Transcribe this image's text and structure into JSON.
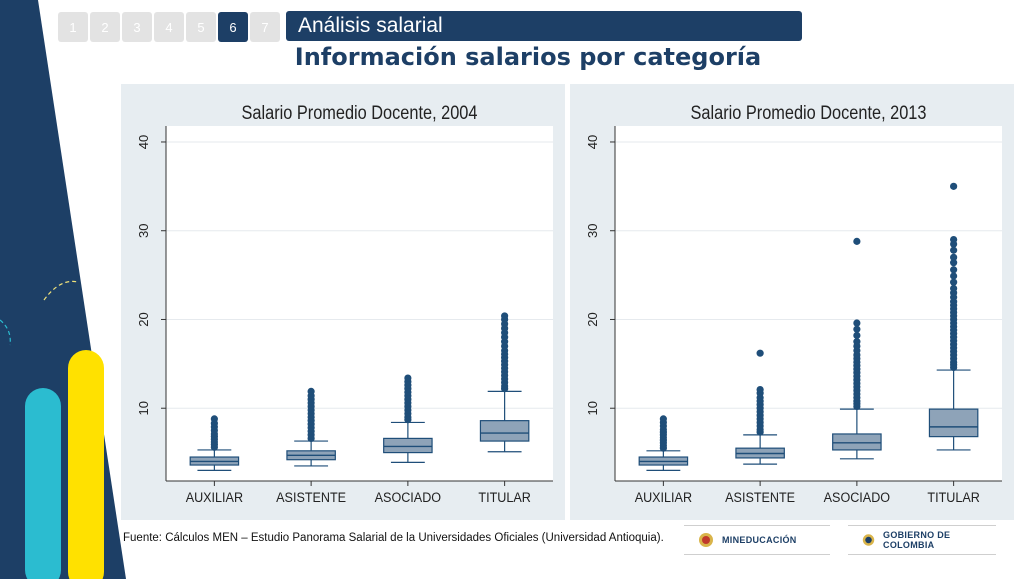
{
  "nav": {
    "slides": [
      "1",
      "2",
      "3",
      "4",
      "5",
      "6",
      "7"
    ],
    "active": "6"
  },
  "header": {
    "section": "Análisis salarial",
    "title": "Información salarios por categoría"
  },
  "colors": {
    "navy": "#1d3f66",
    "box": "#8ea3b8",
    "box_line": "#1f4e79",
    "panel_bg": "#e7edf1",
    "cyan": "#2bbcd0",
    "yellow": "#ffe100"
  },
  "chart_data": [
    {
      "type": "box",
      "title": "Salario Promedio Docente, 2004",
      "categories": [
        "AUXILIAR",
        "ASISTENTE",
        "ASOCIADO",
        "TITULAR"
      ],
      "yticks": [
        10,
        20,
        30,
        40
      ],
      "ylim": [
        1.8,
        41.8
      ],
      "grid": true,
      "boxes": [
        {
          "min": 3.0,
          "q1": 3.6,
          "median": 4.0,
          "q3": 4.5,
          "max": 5.3,
          "outliers": [
            5.6,
            5.9,
            6.2,
            6.5,
            6.8,
            7.1,
            7.5,
            7.9,
            8.3,
            8.8
          ]
        },
        {
          "min": 3.5,
          "q1": 4.2,
          "median": 4.7,
          "q3": 5.2,
          "max": 6.3,
          "outliers": [
            6.6,
            7.0,
            7.4,
            7.8,
            8.2,
            8.6,
            9.0,
            9.4,
            9.8,
            10.2,
            10.6,
            11.0,
            11.4,
            11.9
          ]
        },
        {
          "min": 3.9,
          "q1": 5.0,
          "median": 5.7,
          "q3": 6.6,
          "max": 8.4,
          "outliers": [
            8.7,
            9.0,
            9.4,
            9.8,
            10.2,
            10.6,
            11.0,
            11.4,
            11.8,
            12.2,
            12.6,
            13.0,
            13.4
          ]
        },
        {
          "min": 5.1,
          "q1": 6.3,
          "median": 7.2,
          "q3": 8.6,
          "max": 11.9,
          "outliers": [
            12.2,
            12.5,
            12.9,
            13.3,
            13.7,
            14.1,
            14.5,
            14.9,
            15.3,
            15.7,
            16.1,
            16.5,
            17.0,
            17.5,
            18.0,
            18.5,
            19.0,
            19.5,
            20.0,
            20.4
          ]
        }
      ]
    },
    {
      "type": "box",
      "title": "Salario Promedio Docente, 2013",
      "categories": [
        "AUXILIAR",
        "ASISTENTE",
        "ASOCIADO",
        "TITULAR"
      ],
      "yticks": [
        10,
        20,
        30,
        40
      ],
      "ylim": [
        1.8,
        41.8
      ],
      "grid": true,
      "boxes": [
        {
          "min": 3.0,
          "q1": 3.6,
          "median": 4.0,
          "q3": 4.5,
          "max": 5.2,
          "outliers": [
            5.5,
            5.8,
            6.1,
            6.4,
            6.7,
            7.0,
            7.3,
            7.6,
            8.0,
            8.4,
            8.8
          ]
        },
        {
          "min": 3.7,
          "q1": 4.4,
          "median": 4.9,
          "q3": 5.5,
          "max": 7.0,
          "outliers": [
            7.3,
            7.6,
            8.0,
            8.4,
            8.8,
            9.2,
            9.6,
            10.0,
            10.4,
            10.8,
            11.2,
            11.7,
            12.1,
            16.2
          ]
        },
        {
          "min": 4.3,
          "q1": 5.3,
          "median": 6.1,
          "q3": 7.1,
          "max": 9.9,
          "outliers": [
            10.2,
            10.5,
            10.8,
            11.2,
            11.6,
            12.0,
            12.4,
            12.8,
            13.2,
            13.6,
            14.0,
            14.4,
            14.8,
            15.2,
            15.6,
            16.0,
            16.5,
            17.0,
            17.5,
            18.2,
            18.9,
            19.6,
            28.8
          ]
        },
        {
          "min": 5.3,
          "q1": 6.8,
          "median": 7.9,
          "q3": 9.9,
          "max": 14.3,
          "outliers": [
            14.6,
            14.9,
            15.2,
            15.6,
            16.0,
            16.4,
            16.8,
            17.2,
            17.6,
            18.0,
            18.4,
            18.8,
            19.2,
            19.6,
            20.0,
            20.4,
            20.8,
            21.2,
            21.6,
            22.0,
            22.5,
            23.0,
            23.5,
            24.2,
            24.9,
            25.6,
            26.4,
            27.0,
            27.8,
            28.5,
            29.0,
            35.0
          ]
        }
      ]
    }
  ],
  "footer": {
    "source": "Fuente: Cálculos MEN – Estudio Panorama Salarial de la Universidades Oficiales (Universidad Antioquia).",
    "logo1": "MINEDUCACIÓN",
    "logo2": "GOBIERNO DE COLOMBIA"
  }
}
